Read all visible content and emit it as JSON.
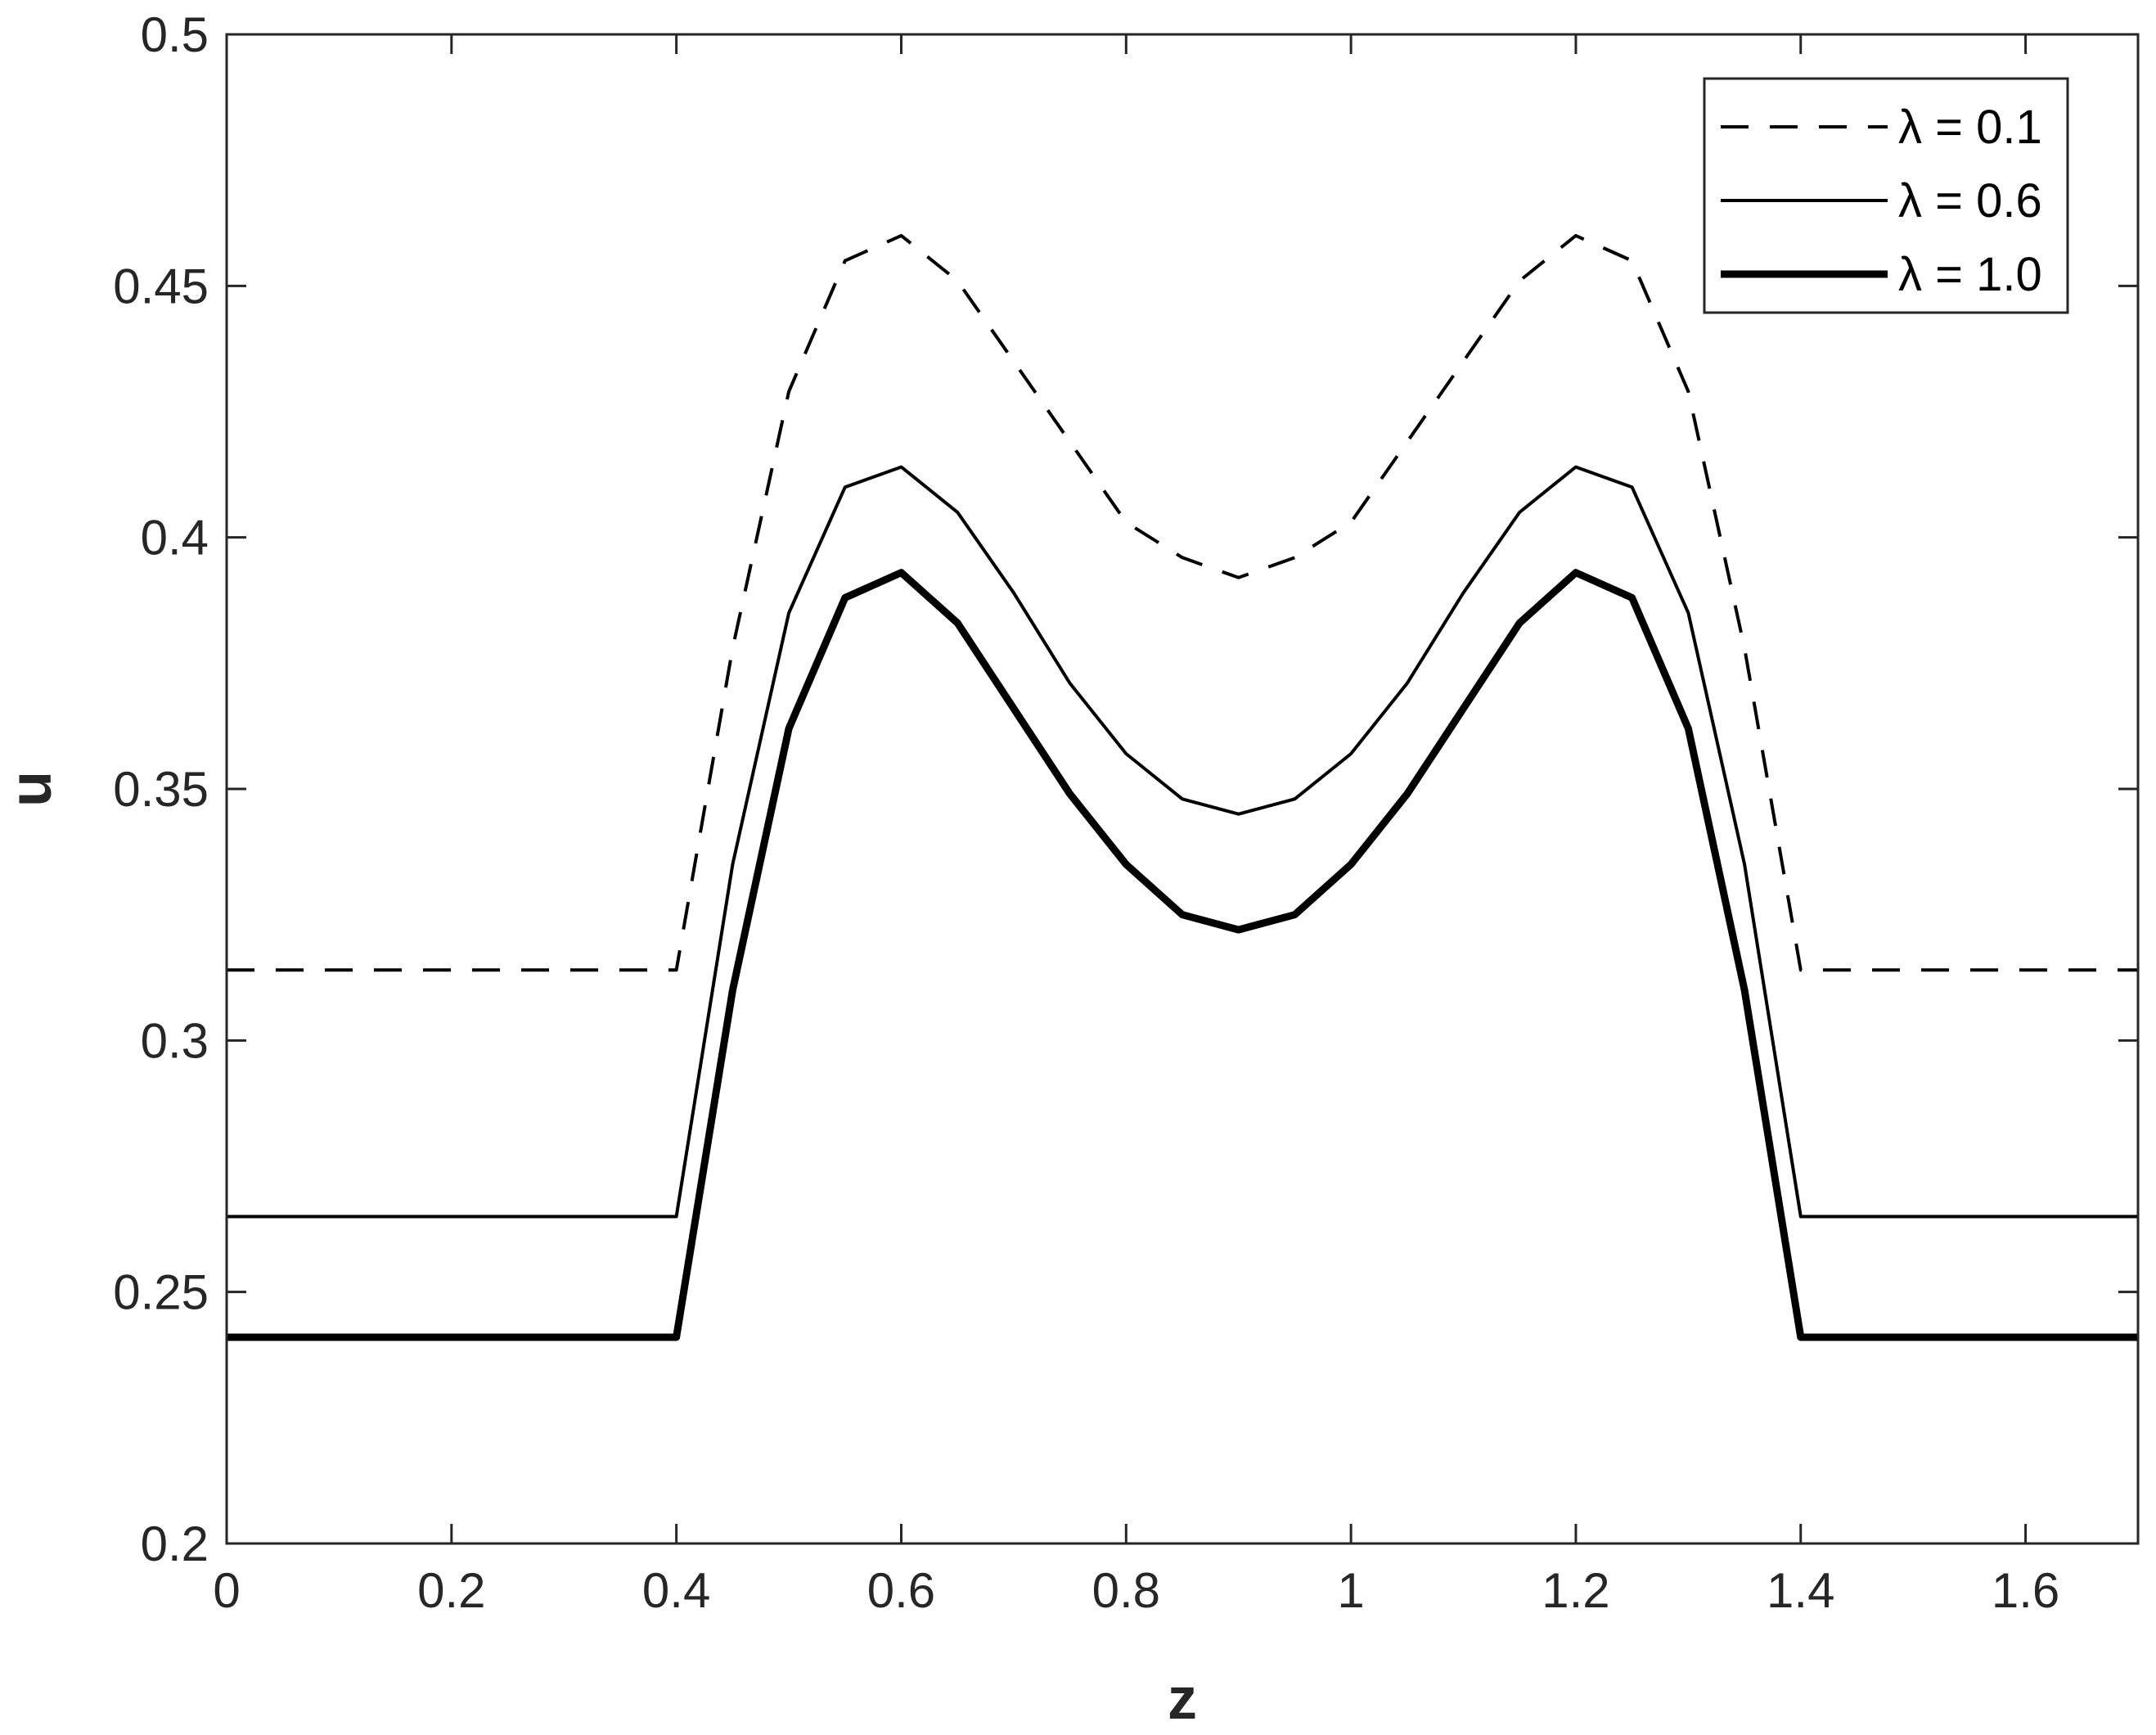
{
  "chart_data": {
    "type": "line",
    "title": "",
    "xlabel": "z",
    "ylabel": "u",
    "xlim": [
      0,
      1.7
    ],
    "ylim": [
      0.2,
      0.5
    ],
    "xticks": [
      0,
      0.2,
      0.4,
      0.6,
      0.8,
      1,
      1.2,
      1.4,
      1.6
    ],
    "xtick_labels": [
      "0",
      "0.2",
      "0.4",
      "0.6",
      "0.8",
      "1",
      "1.2",
      "1.4",
      "1.6"
    ],
    "yticks": [
      0.2,
      0.25,
      0.3,
      0.35,
      0.4,
      0.45,
      0.5
    ],
    "ytick_labels": [
      "0.2",
      "0.25",
      "0.3",
      "0.35",
      "0.4",
      "0.45",
      "0.5"
    ],
    "grid": false,
    "legend_position": "top-right",
    "x": [
      0,
      0.4,
      0.45,
      0.5,
      0.55,
      0.6,
      0.65,
      0.7,
      0.75,
      0.8,
      0.85,
      0.9,
      0.95,
      1.0,
      1.05,
      1.1,
      1.15,
      1.2,
      1.25,
      1.3,
      1.35,
      1.4,
      1.7
    ],
    "series": [
      {
        "name": "λ = 0.1",
        "style": "dashed",
        "color": "#000000",
        "values": [
          0.314,
          0.314,
          0.378,
          0.429,
          0.455,
          0.46,
          0.451,
          0.435,
          0.419,
          0.403,
          0.396,
          0.392,
          0.396,
          0.403,
          0.419,
          0.435,
          0.451,
          0.46,
          0.455,
          0.429,
          0.378,
          0.314,
          0.314
        ]
      },
      {
        "name": "λ = 0.6",
        "style": "solid-thin",
        "color": "#000000",
        "values": [
          0.265,
          0.265,
          0.335,
          0.385,
          0.41,
          0.414,
          0.405,
          0.389,
          0.371,
          0.357,
          0.348,
          0.345,
          0.348,
          0.357,
          0.371,
          0.389,
          0.405,
          0.414,
          0.41,
          0.385,
          0.335,
          0.265,
          0.265
        ]
      },
      {
        "name": "λ = 1.0",
        "style": "solid-thick",
        "color": "#000000",
        "values": [
          0.241,
          0.241,
          0.31,
          0.362,
          0.388,
          0.393,
          0.383,
          0.366,
          0.349,
          0.335,
          0.325,
          0.322,
          0.325,
          0.335,
          0.349,
          0.366,
          0.383,
          0.393,
          0.388,
          0.362,
          0.31,
          0.241,
          0.241
        ]
      }
    ]
  }
}
